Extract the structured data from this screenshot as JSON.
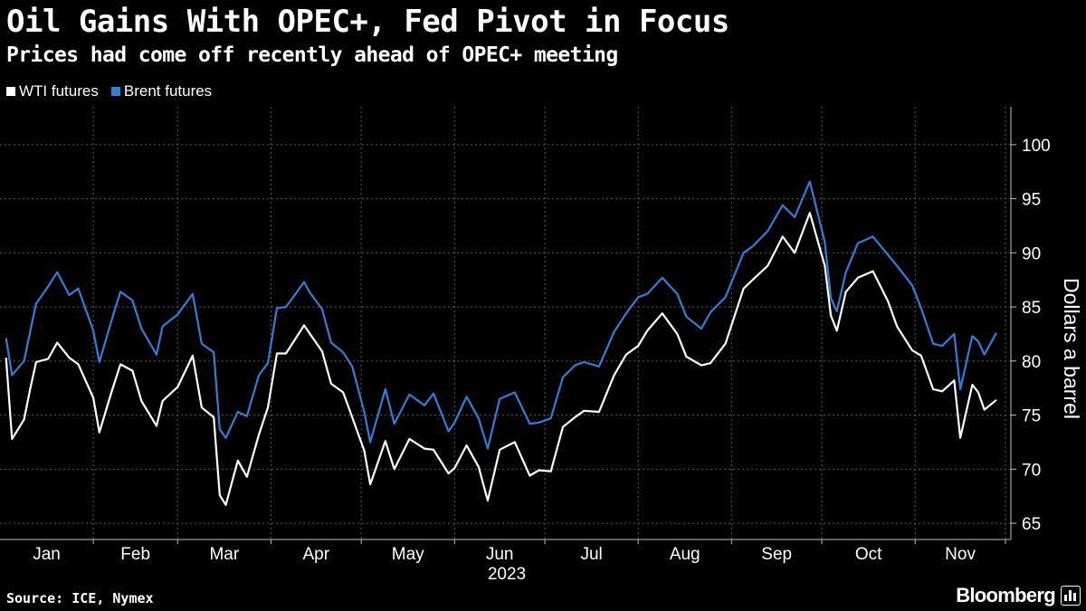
{
  "header": {
    "title": "Oil Gains With OPEC+, Fed Pivot in Focus",
    "subtitle": "Prices had come off recently ahead of OPEC+ meeting"
  },
  "footer": {
    "source": "Source: ICE, Nymex",
    "brand": "Bloomberg"
  },
  "colors": {
    "background": "#000000",
    "wti": "#ffffff",
    "brent": "#2e7fd8",
    "grid": "#5a5a5a",
    "axis": "#bfbfbf"
  },
  "chart_data": {
    "type": "line",
    "title": "Oil Gains With OPEC+, Fed Pivot in Focus",
    "subtitle": "Prices had come off recently ahead of OPEC+ meeting",
    "xlabel": "2023",
    "ylabel": "Dollars a barrel",
    "ylim": [
      63.5,
      103.5
    ],
    "y_ticks": [
      65,
      70,
      75,
      80,
      85,
      90,
      95,
      100
    ],
    "x_range": [
      "2023-01-01",
      "2023-11-28"
    ],
    "x_month_labels": [
      "Jan",
      "Feb",
      "Mar",
      "Apr",
      "May",
      "Jun",
      "Jul",
      "Aug",
      "Sep",
      "Oct",
      "Nov"
    ],
    "x_year_label": "2023",
    "grid": true,
    "grid_style": "dotted vertical at month boundaries",
    "y_axis_side": "right",
    "legend_position": "top-left",
    "x": [
      "2023-01-03",
      "2023-01-05",
      "2023-01-09",
      "2023-01-11",
      "2023-01-13",
      "2023-01-17",
      "2023-01-20",
      "2023-01-24",
      "2023-01-27",
      "2023-02-01",
      "2023-02-03",
      "2023-02-07",
      "2023-02-10",
      "2023-02-14",
      "2023-02-17",
      "2023-02-22",
      "2023-02-24",
      "2023-03-01",
      "2023-03-06",
      "2023-03-09",
      "2023-03-13",
      "2023-03-15",
      "2023-03-17",
      "2023-03-21",
      "2023-03-24",
      "2023-03-28",
      "2023-03-31",
      "2023-04-03",
      "2023-04-06",
      "2023-04-12",
      "2023-04-14",
      "2023-04-18",
      "2023-04-21",
      "2023-04-25",
      "2023-04-28",
      "2023-05-02",
      "2023-05-04",
      "2023-05-09",
      "2023-05-12",
      "2023-05-17",
      "2023-05-22",
      "2023-05-25",
      "2023-05-30",
      "2023-06-01",
      "2023-06-05",
      "2023-06-09",
      "2023-06-12",
      "2023-06-16",
      "2023-06-21",
      "2023-06-26",
      "2023-06-29",
      "2023-07-03",
      "2023-07-07",
      "2023-07-11",
      "2023-07-14",
      "2023-07-19",
      "2023-07-24",
      "2023-07-28",
      "2023-08-01",
      "2023-08-04",
      "2023-08-09",
      "2023-08-14",
      "2023-08-17",
      "2023-08-22",
      "2023-08-25",
      "2023-08-30",
      "2023-09-05",
      "2023-09-08",
      "2023-09-13",
      "2023-09-18",
      "2023-09-22",
      "2023-09-27",
      "2023-10-02",
      "2023-10-04",
      "2023-10-06",
      "2023-10-09",
      "2023-10-13",
      "2023-10-18",
      "2023-10-23",
      "2023-10-26",
      "2023-10-31",
      "2023-11-03",
      "2023-11-07",
      "2023-11-10",
      "2023-11-14",
      "2023-11-16",
      "2023-11-20",
      "2023-11-22",
      "2023-11-24",
      "2023-11-28"
    ],
    "series": [
      {
        "name": "WTI futures",
        "color": "#ffffff",
        "values": [
          80.3,
          72.8,
          74.6,
          77.4,
          79.9,
          80.2,
          81.7,
          80.3,
          79.7,
          76.6,
          73.4,
          77.1,
          79.7,
          79.1,
          76.3,
          74.0,
          76.3,
          77.6,
          80.5,
          75.7,
          74.8,
          67.6,
          66.7,
          70.8,
          69.3,
          73.2,
          75.7,
          80.7,
          80.7,
          83.3,
          82.5,
          80.9,
          77.9,
          77.1,
          74.8,
          71.7,
          68.6,
          72.6,
          70.0,
          72.8,
          71.9,
          71.8,
          69.6,
          70.1,
          72.2,
          70.2,
          67.1,
          71.8,
          72.5,
          69.4,
          69.9,
          69.8,
          73.9,
          74.8,
          75.4,
          75.3,
          78.7,
          80.6,
          81.4,
          82.8,
          84.4,
          82.5,
          80.4,
          79.6,
          79.8,
          81.6,
          86.7,
          87.5,
          88.8,
          91.5,
          90.0,
          93.7,
          88.8,
          84.2,
          82.8,
          86.4,
          87.7,
          88.3,
          85.5,
          83.2,
          81.0,
          80.5,
          77.4,
          77.2,
          78.2,
          72.9,
          77.8,
          77.1,
          75.5,
          76.4
        ]
      },
      {
        "name": "Brent futures",
        "color": "#2e7fd8",
        "values": [
          82.1,
          78.7,
          80.0,
          82.7,
          85.3,
          86.9,
          88.2,
          86.1,
          86.7,
          82.8,
          79.9,
          83.7,
          86.4,
          85.6,
          83.0,
          80.6,
          83.2,
          84.3,
          86.2,
          81.6,
          80.8,
          73.7,
          72.9,
          75.3,
          74.9,
          78.7,
          79.8,
          84.9,
          85.0,
          87.3,
          86.3,
          84.8,
          81.7,
          80.8,
          79.5,
          75.3,
          72.5,
          77.4,
          74.2,
          76.9,
          75.9,
          77.0,
          73.5,
          74.3,
          76.7,
          74.7,
          71.9,
          76.5,
          77.1,
          74.2,
          74.3,
          74.7,
          78.5,
          79.6,
          79.9,
          79.5,
          82.7,
          84.4,
          85.9,
          86.2,
          87.7,
          86.2,
          84.1,
          83.0,
          84.5,
          85.9,
          90.0,
          90.6,
          92.0,
          94.4,
          93.3,
          96.6,
          91.0,
          85.8,
          84.6,
          88.2,
          90.9,
          91.5,
          89.8,
          88.8,
          87.0,
          84.9,
          81.6,
          81.4,
          82.5,
          77.4,
          82.3,
          81.8,
          80.6,
          82.6
        ]
      }
    ]
  }
}
